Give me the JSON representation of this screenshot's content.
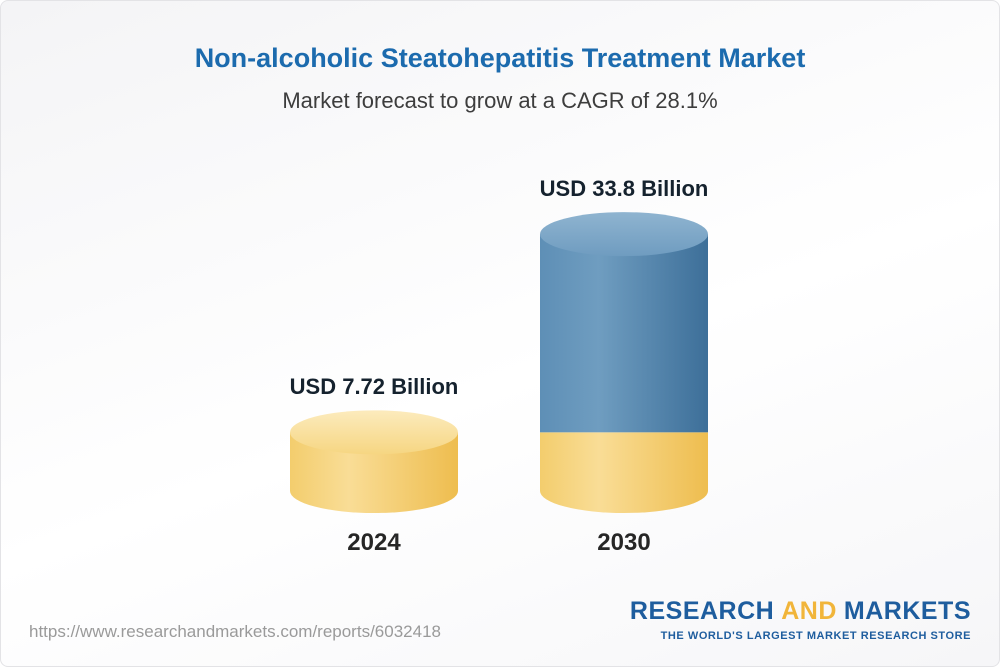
{
  "chart_data": {
    "type": "bar",
    "subtype": "3d-cylinder",
    "title": "Non-alcoholic Steatohepatitis Treatment Market",
    "subtitle": "Market forecast to grow at a CAGR of 28.1%",
    "cagr": "28.1%",
    "unit": "USD Billion",
    "categories": [
      "2024",
      "2030"
    ],
    "values": [
      7.72,
      33.8
    ],
    "value_labels": [
      "USD 7.72 Billion",
      "USD 33.8 Billion"
    ],
    "legend": "none",
    "colors": {
      "base_segment": "#f2c65f",
      "base_segment_top": "#fae3a3",
      "growth_segment": "#4a7da7",
      "growth_segment_top": "#82aac8",
      "title_text": "#1c6bae"
    }
  },
  "footer": {
    "url": "https://www.researchandmarkets.com/reports/6032418",
    "logo": {
      "research": "RESEARCH",
      "and": "AND",
      "markets": "MARKETS",
      "tagline": "THE WORLD'S LARGEST MARKET RESEARCH STORE"
    }
  }
}
